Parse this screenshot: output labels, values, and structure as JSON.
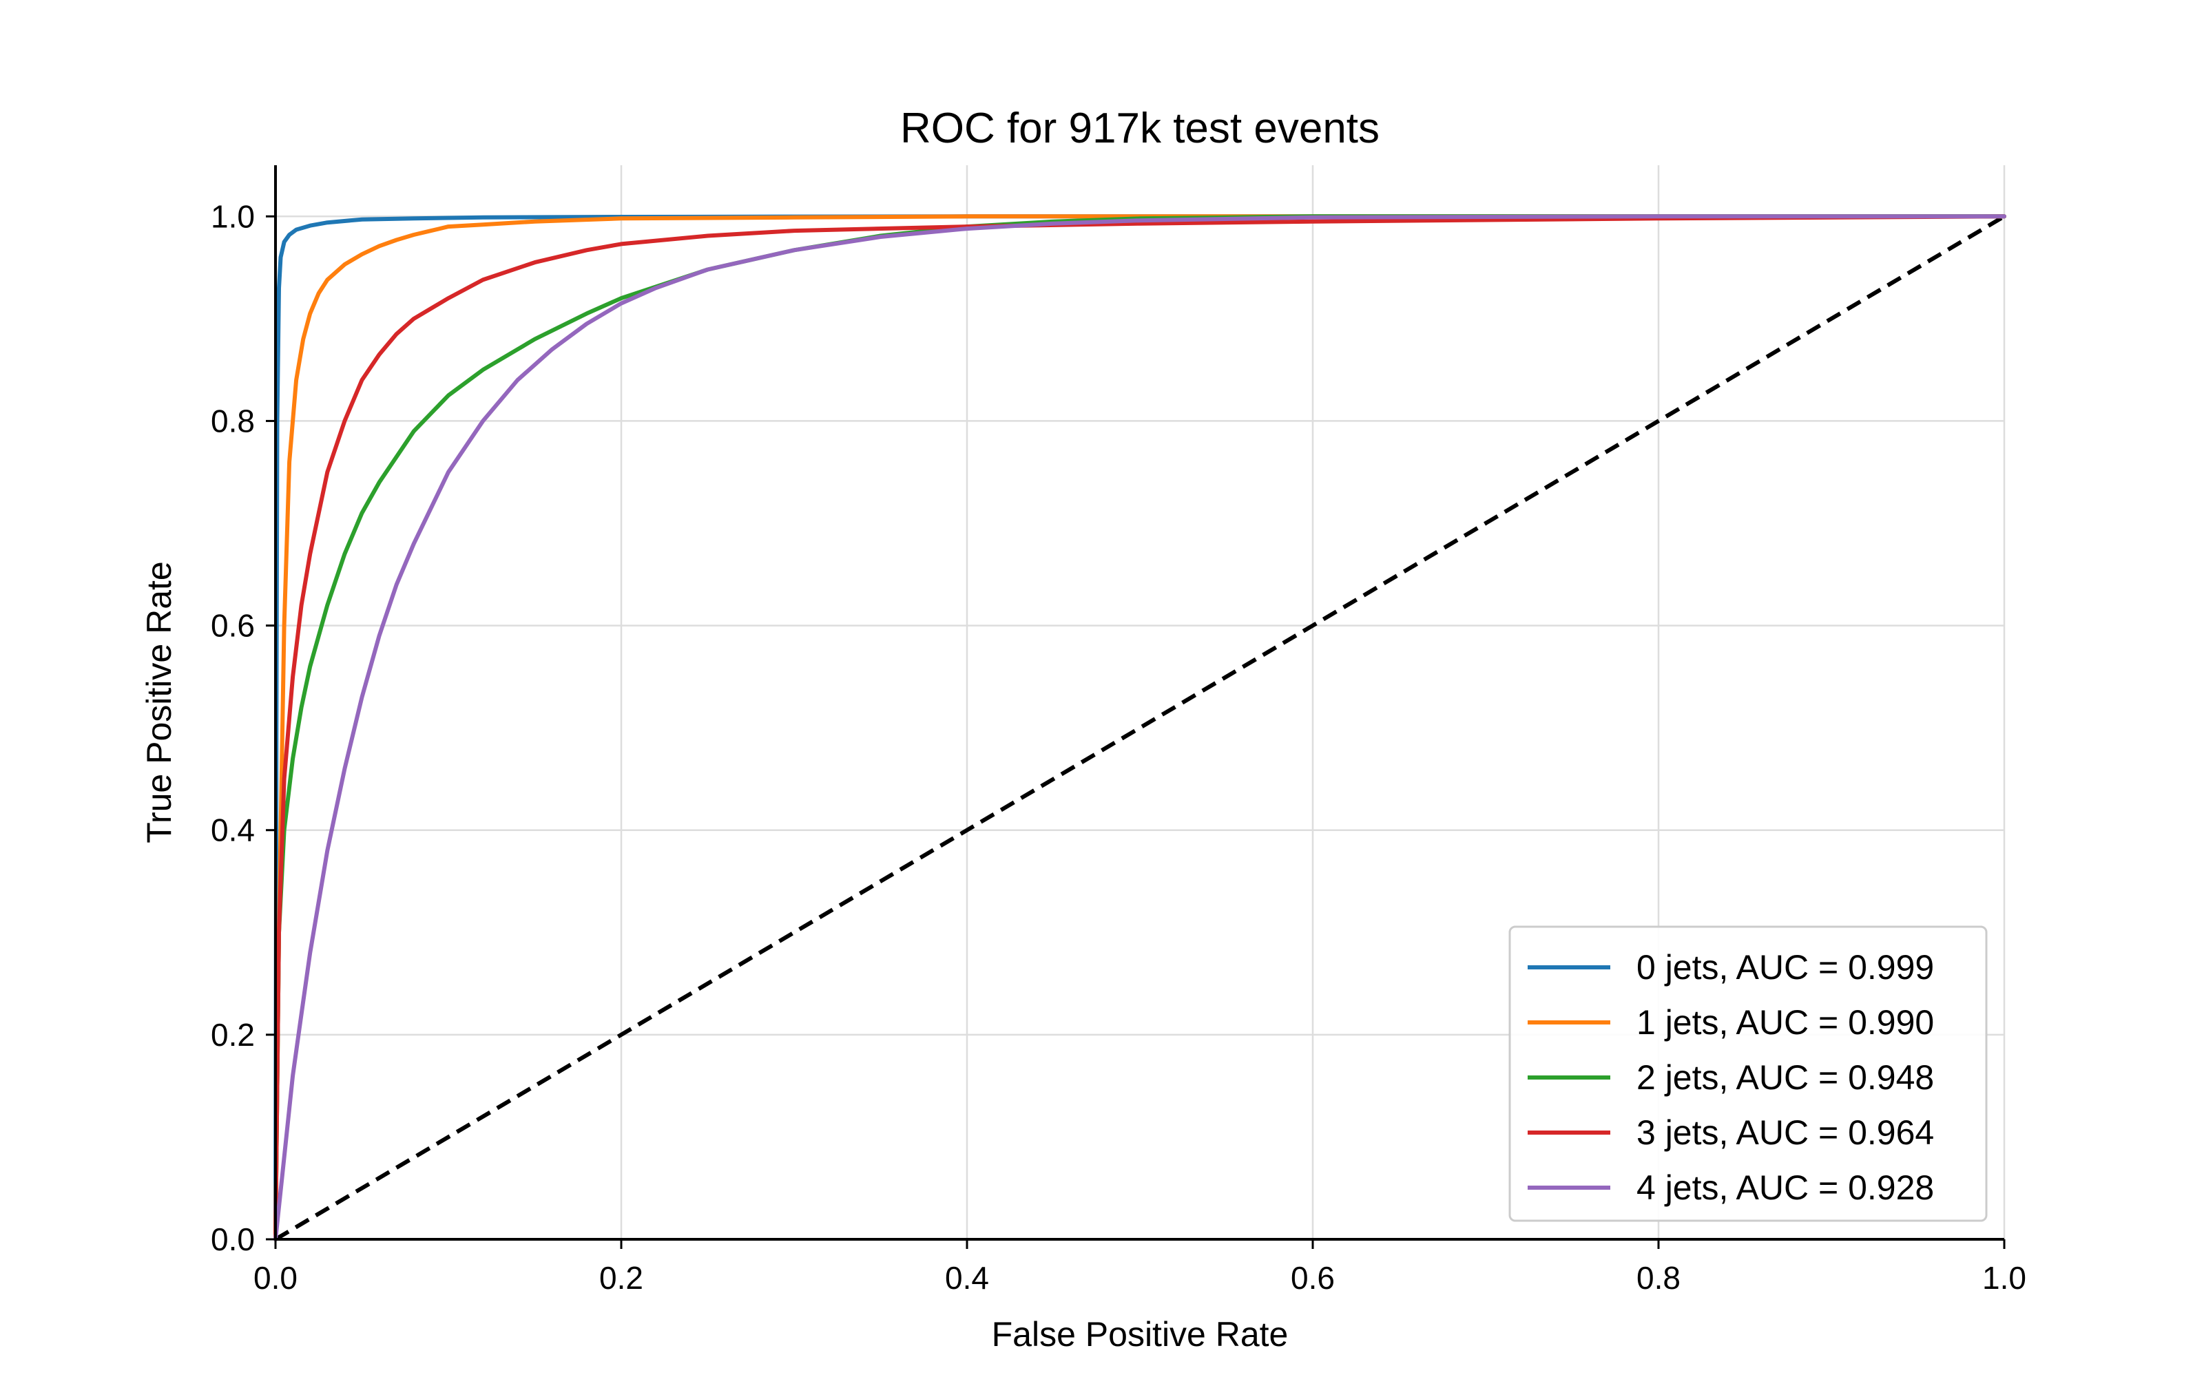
{
  "chart_data": {
    "type": "line",
    "title": "ROC for 917k test events",
    "xlabel": "False Positive Rate",
    "ylabel": "True Positive Rate",
    "xlim": [
      0.0,
      1.0
    ],
    "ylim": [
      0.0,
      1.05
    ],
    "grid": true,
    "legend_position": "bottom-right",
    "xticks": [
      "0.0",
      "0.2",
      "0.4",
      "0.6",
      "0.8",
      "1.0"
    ],
    "yticks": [
      "0.0",
      "0.2",
      "0.4",
      "0.6",
      "0.8",
      "1.0"
    ],
    "reference_line": {
      "x": [
        0.0,
        1.0
      ],
      "y": [
        0.0,
        1.0
      ],
      "color": "#000000",
      "style": "dashed"
    },
    "series": [
      {
        "name": "0 jets, AUC = 0.999",
        "color": "#1f77b4",
        "x": [
          0.0,
          0.0005,
          0.001,
          0.002,
          0.003,
          0.005,
          0.008,
          0.012,
          0.02,
          0.03,
          0.05,
          0.08,
          0.12,
          0.2,
          0.4,
          0.7,
          1.0
        ],
        "y": [
          0.0,
          0.5,
          0.8,
          0.93,
          0.96,
          0.975,
          0.982,
          0.987,
          0.991,
          0.994,
          0.997,
          0.998,
          0.999,
          0.9995,
          1.0,
          1.0,
          1.0
        ]
      },
      {
        "name": "1 jets, AUC = 0.990",
        "color": "#ff7f0e",
        "x": [
          0.0,
          0.002,
          0.005,
          0.008,
          0.012,
          0.016,
          0.02,
          0.025,
          0.03,
          0.04,
          0.05,
          0.06,
          0.07,
          0.08,
          0.09,
          0.1,
          0.12,
          0.15,
          0.2,
          0.3,
          0.4,
          1.0
        ],
        "y": [
          0.0,
          0.3,
          0.6,
          0.76,
          0.84,
          0.88,
          0.905,
          0.925,
          0.938,
          0.953,
          0.963,
          0.971,
          0.977,
          0.982,
          0.986,
          0.99,
          0.992,
          0.995,
          0.998,
          0.999,
          1.0,
          1.0
        ]
      },
      {
        "name": "2 jets, AUC = 0.948",
        "color": "#2ca02c",
        "x": [
          0.0,
          0.002,
          0.005,
          0.01,
          0.015,
          0.02,
          0.03,
          0.04,
          0.05,
          0.06,
          0.08,
          0.1,
          0.12,
          0.15,
          0.18,
          0.2,
          0.25,
          0.3,
          0.35,
          0.4,
          0.45,
          0.5,
          0.6,
          1.0
        ],
        "y": [
          0.0,
          0.3,
          0.4,
          0.47,
          0.52,
          0.56,
          0.62,
          0.67,
          0.71,
          0.74,
          0.79,
          0.825,
          0.85,
          0.88,
          0.905,
          0.92,
          0.948,
          0.967,
          0.981,
          0.99,
          0.995,
          0.998,
          1.0,
          1.0
        ]
      },
      {
        "name": "3 jets, AUC = 0.964",
        "color": "#d62728",
        "x": [
          0.0,
          0.002,
          0.005,
          0.01,
          0.015,
          0.02,
          0.03,
          0.04,
          0.05,
          0.06,
          0.07,
          0.08,
          0.09,
          0.1,
          0.12,
          0.15,
          0.18,
          0.2,
          0.25,
          0.3,
          0.4,
          0.5,
          0.6,
          0.8,
          1.0
        ],
        "y": [
          0.0,
          0.3,
          0.45,
          0.55,
          0.62,
          0.67,
          0.75,
          0.8,
          0.84,
          0.865,
          0.885,
          0.9,
          0.91,
          0.92,
          0.938,
          0.955,
          0.967,
          0.973,
          0.981,
          0.986,
          0.99,
          0.993,
          0.995,
          0.998,
          1.0
        ]
      },
      {
        "name": "4 jets, AUC = 0.928",
        "color": "#9467bd",
        "x": [
          0.0,
          0.005,
          0.01,
          0.015,
          0.02,
          0.03,
          0.04,
          0.05,
          0.06,
          0.07,
          0.08,
          0.1,
          0.12,
          0.14,
          0.16,
          0.18,
          0.2,
          0.22,
          0.25,
          0.3,
          0.35,
          0.4,
          0.45,
          0.5,
          0.6,
          0.8,
          1.0
        ],
        "y": [
          0.0,
          0.08,
          0.16,
          0.22,
          0.28,
          0.38,
          0.46,
          0.53,
          0.59,
          0.64,
          0.68,
          0.75,
          0.8,
          0.84,
          0.87,
          0.895,
          0.915,
          0.93,
          0.948,
          0.967,
          0.98,
          0.988,
          0.993,
          0.996,
          0.999,
          1.0,
          1.0
        ]
      }
    ]
  }
}
